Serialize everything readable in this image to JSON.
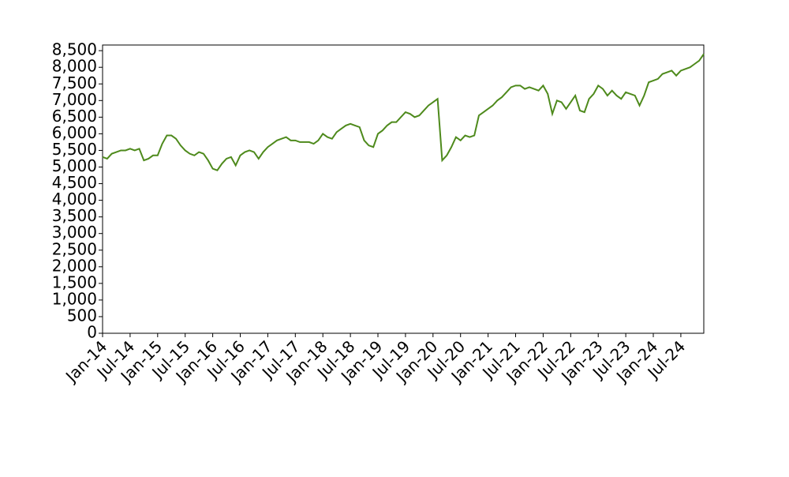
{
  "chart_data": {
    "type": "line",
    "color": "#4e8a1c",
    "x": [
      "2014-01",
      "2014-02",
      "2014-03",
      "2014-04",
      "2014-05",
      "2014-06",
      "2014-07",
      "2014-08",
      "2014-09",
      "2014-10",
      "2014-11",
      "2014-12",
      "2015-01",
      "2015-02",
      "2015-03",
      "2015-04",
      "2015-05",
      "2015-06",
      "2015-07",
      "2015-08",
      "2015-09",
      "2015-10",
      "2015-11",
      "2015-12",
      "2016-01",
      "2016-02",
      "2016-03",
      "2016-04",
      "2016-05",
      "2016-06",
      "2016-07",
      "2016-08",
      "2016-09",
      "2016-10",
      "2016-11",
      "2016-12",
      "2017-01",
      "2017-02",
      "2017-03",
      "2017-04",
      "2017-05",
      "2017-06",
      "2017-07",
      "2017-08",
      "2017-09",
      "2017-10",
      "2017-11",
      "2017-12",
      "2018-01",
      "2018-02",
      "2018-03",
      "2018-04",
      "2018-05",
      "2018-06",
      "2018-07",
      "2018-08",
      "2018-09",
      "2018-10",
      "2018-11",
      "2018-12",
      "2019-01",
      "2019-02",
      "2019-03",
      "2019-04",
      "2019-05",
      "2019-06",
      "2019-07",
      "2019-08",
      "2019-09",
      "2019-10",
      "2019-11",
      "2019-12",
      "2020-01",
      "2020-02",
      "2020-03",
      "2020-04",
      "2020-05",
      "2020-06",
      "2020-07",
      "2020-08",
      "2020-09",
      "2020-10",
      "2020-11",
      "2020-12",
      "2021-01",
      "2021-02",
      "2021-03",
      "2021-04",
      "2021-05",
      "2021-06",
      "2021-07",
      "2021-08",
      "2021-09",
      "2021-10",
      "2021-11",
      "2021-12",
      "2022-01",
      "2022-02",
      "2022-03",
      "2022-04",
      "2022-05",
      "2022-06",
      "2022-07",
      "2022-08",
      "2022-09",
      "2022-10",
      "2022-11",
      "2022-12",
      "2023-01",
      "2023-02",
      "2023-03",
      "2023-04",
      "2023-05",
      "2023-06",
      "2023-07",
      "2023-08",
      "2023-09",
      "2023-10",
      "2023-11",
      "2023-12",
      "2024-01",
      "2024-02",
      "2024-03",
      "2024-04",
      "2024-05",
      "2024-06",
      "2024-07",
      "2024-08",
      "2024-09",
      "2024-10",
      "2024-11",
      "2024-12"
    ],
    "values": [
      5300,
      5250,
      5400,
      5450,
      5500,
      5500,
      5550,
      5500,
      5550,
      5200,
      5250,
      5350,
      5350,
      5700,
      5950,
      5950,
      5850,
      5650,
      5500,
      5400,
      5350,
      5450,
      5400,
      5200,
      4950,
      4900,
      5100,
      5250,
      5300,
      5050,
      5350,
      5450,
      5500,
      5450,
      5250,
      5450,
      5600,
      5700,
      5800,
      5850,
      5900,
      5800,
      5800,
      5750,
      5750,
      5750,
      5700,
      5800,
      6000,
      5900,
      5850,
      6050,
      6150,
      6250,
      6300,
      6250,
      6200,
      5800,
      5650,
      5600,
      6000,
      6100,
      6250,
      6350,
      6350,
      6500,
      6650,
      6600,
      6500,
      6550,
      6700,
      6850,
      6950,
      7050,
      5200,
      5350,
      5600,
      5900,
      5800,
      5950,
      5900,
      5950,
      6550,
      6650,
      6750,
      6850,
      7000,
      7100,
      7250,
      7400,
      7450,
      7450,
      7350,
      7400,
      7350,
      7300,
      7450,
      7200,
      6600,
      7000,
      6950,
      6750,
      6950,
      7150,
      6700,
      6650,
      7050,
      7200,
      7450,
      7350,
      7150,
      7300,
      7150,
      7050,
      7250,
      7200,
      7150,
      6850,
      7150,
      7550,
      7600,
      7650,
      7800,
      7850,
      7900,
      7750,
      7900,
      7950,
      8000,
      8100,
      8200,
      8400
    ],
    "xlim": [
      "2014-01",
      "2024-12"
    ],
    "xticks": [
      {
        "value": "2014-01",
        "label": "Jan-14"
      },
      {
        "value": "2014-07",
        "label": "Jul-14"
      },
      {
        "value": "2015-01",
        "label": "Jan-15"
      },
      {
        "value": "2015-07",
        "label": "Jul-15"
      },
      {
        "value": "2016-01",
        "label": "Jan-16"
      },
      {
        "value": "2016-07",
        "label": "Jul-16"
      },
      {
        "value": "2017-01",
        "label": "Jan-17"
      },
      {
        "value": "2017-07",
        "label": "Jul-17"
      },
      {
        "value": "2018-01",
        "label": "Jan-18"
      },
      {
        "value": "2018-07",
        "label": "Jul-18"
      },
      {
        "value": "2019-01",
        "label": "Jan-19"
      },
      {
        "value": "2019-07",
        "label": "Jul-19"
      },
      {
        "value": "2020-01",
        "label": "Jan-20"
      },
      {
        "value": "2020-07",
        "label": "Jul-20"
      },
      {
        "value": "2021-01",
        "label": "Jan-21"
      },
      {
        "value": "2021-07",
        "label": "Jul-21"
      },
      {
        "value": "2022-01",
        "label": "Jan-22"
      },
      {
        "value": "2022-07",
        "label": "Jul-22"
      },
      {
        "value": "2023-01",
        "label": "Jan-23"
      },
      {
        "value": "2023-07",
        "label": "Jul-23"
      },
      {
        "value": "2024-01",
        "label": "Jan-24"
      },
      {
        "value": "2024-07",
        "label": "Jul-24"
      }
    ],
    "ylim": [
      0,
      8670
    ],
    "yticks": [
      0,
      500,
      {
        "value": 1000,
        "label": "1,000"
      },
      {
        "value": 1500,
        "label": "1,500"
      },
      {
        "value": 2000,
        "label": "2,000"
      },
      {
        "value": 2500,
        "label": "2,500"
      },
      {
        "value": 3000,
        "label": "3,000"
      },
      {
        "value": 3500,
        "label": "3,500"
      },
      {
        "value": 4000,
        "label": "4,000"
      },
      {
        "value": 4500,
        "label": "4,500"
      },
      {
        "value": 5000,
        "label": "5,000"
      },
      {
        "value": 5500,
        "label": "5,500"
      },
      {
        "value": 6000,
        "label": "6,000"
      },
      {
        "value": 6500,
        "label": "6,500"
      },
      {
        "value": 7000,
        "label": "7,000"
      },
      {
        "value": 7500,
        "label": "7,500"
      },
      {
        "value": 8000,
        "label": "8,000"
      },
      {
        "value": 8500,
        "label": "8,500"
      }
    ],
    "grid": false
  }
}
